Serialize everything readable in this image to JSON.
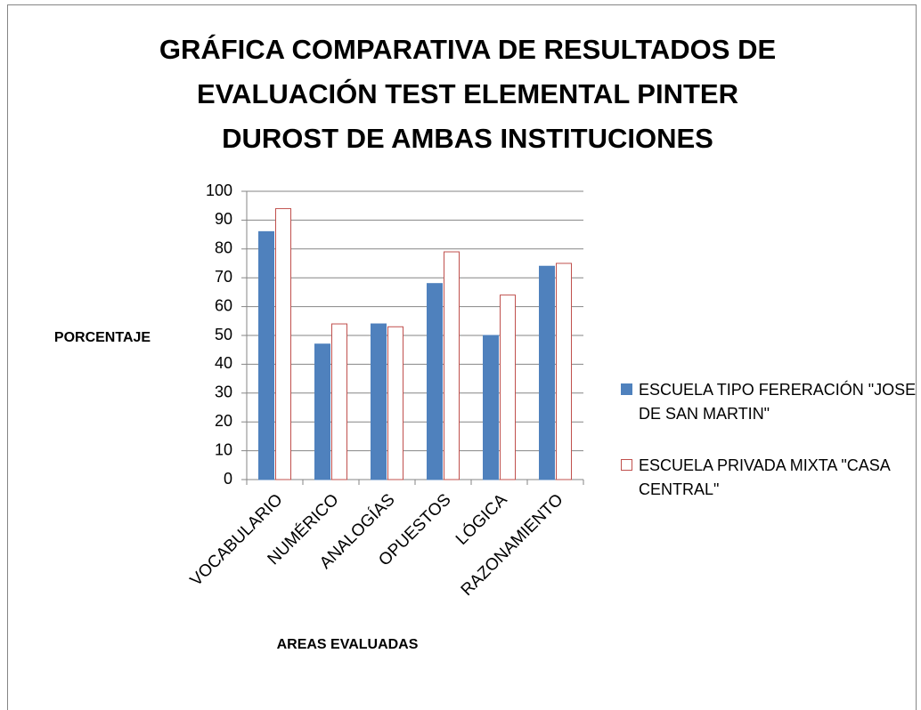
{
  "chart_data": {
    "type": "bar",
    "title": [
      "GRÁFICA COMPARATIVA DE RESULTADOS DE",
      "EVALUACIÓN TEST ELEMENTAL PINTER",
      "DUROST  DE AMBAS INSTITUCIONES"
    ],
    "x_label": "AREAS EVALUADAS",
    "y_label": "PORCENTAJE",
    "categories": [
      "VOCABULARIO",
      "NUMÉRICO",
      "ANALOGÍAS",
      "OPUESTOS",
      "LÓGICA",
      "RAZONAMIENTO"
    ],
    "series": [
      {
        "name": "ESCUELA TIPO FERERACIÓN \"JOSE DE SAN MARTIN\"",
        "color": "#4f81bd",
        "fill": "solid",
        "values": [
          86,
          47,
          54,
          68,
          50,
          74
        ]
      },
      {
        "name": "ESCUELA PRIVADA MIXTA \"CASA CENTRAL\"",
        "color": "#c0504d",
        "fill": "outline",
        "values": [
          94,
          54,
          53,
          79,
          64,
          75
        ]
      }
    ],
    "ylim": [
      0,
      100
    ],
    "yticks": [
      0,
      10,
      20,
      30,
      40,
      50,
      60,
      70,
      80,
      90,
      100
    ],
    "grid": true,
    "legend": "right"
  }
}
